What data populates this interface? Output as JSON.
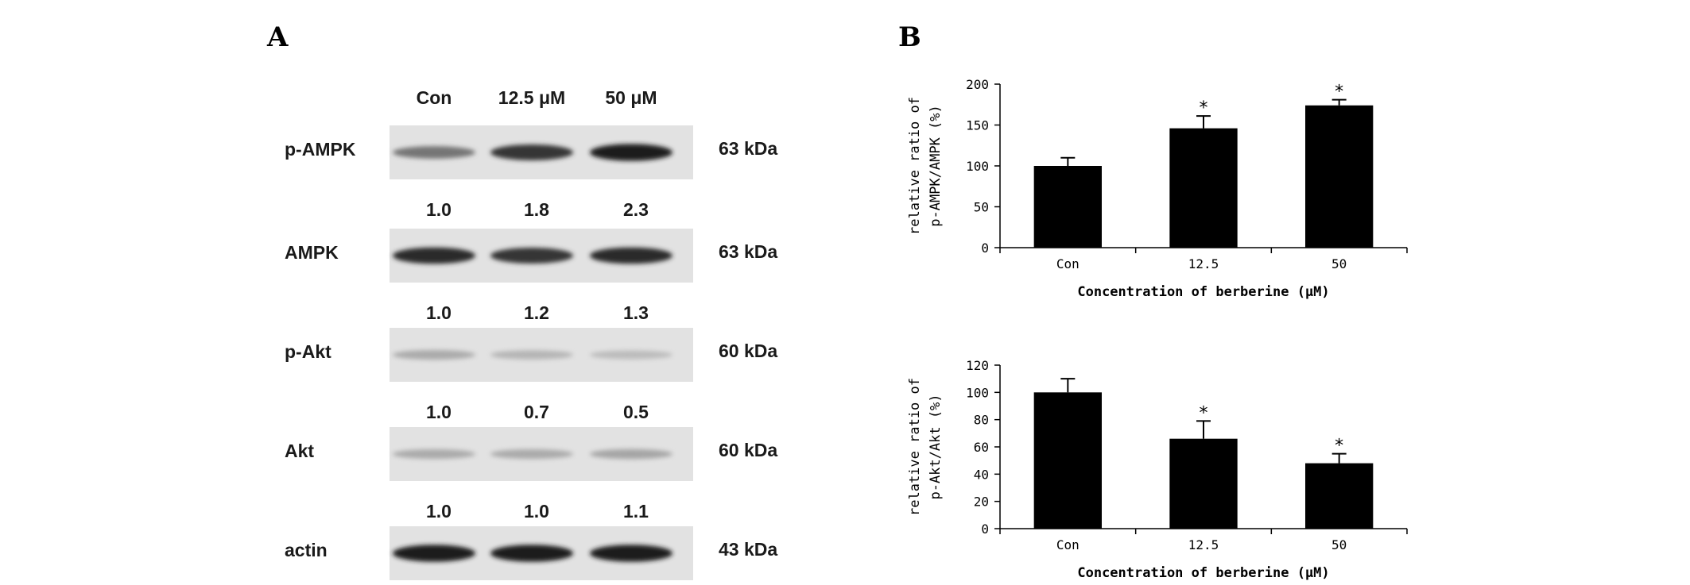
{
  "panel_labels": {
    "a": "A",
    "b": "B"
  },
  "blot": {
    "lanes": [
      "Con",
      "12.5 μM",
      "50 μM"
    ],
    "rows": [
      {
        "protein": "p-AMPK",
        "kda": "63 kDa",
        "ratios": [
          "1.0",
          "1.8",
          "2.3"
        ],
        "band_strength": [
          0.55,
          0.85,
          0.95
        ]
      },
      {
        "protein": "AMPK",
        "kda": "63 kDa",
        "ratios": [
          "1.0",
          "1.2",
          "1.3"
        ],
        "band_strength": [
          0.9,
          0.85,
          0.9
        ]
      },
      {
        "protein": "p-Akt",
        "kda": "60 kDa",
        "ratios": [
          "1.0",
          "0.7",
          "0.5"
        ],
        "band_strength": [
          0.3,
          0.25,
          0.22
        ]
      },
      {
        "protein": "Akt",
        "kda": "60 kDa",
        "ratios": [
          "1.0",
          "1.0",
          "1.1"
        ],
        "band_strength": [
          0.3,
          0.3,
          0.32
        ]
      },
      {
        "protein": "actin",
        "kda": "43 kDa",
        "ratios": [],
        "band_strength": [
          0.95,
          0.95,
          0.95
        ]
      }
    ]
  },
  "chart_data": [
    {
      "type": "bar",
      "categories": [
        "Con",
        "12.5",
        "50"
      ],
      "values": [
        100,
        146,
        174
      ],
      "errors": [
        10,
        15,
        7
      ],
      "significance": [
        "",
        "*",
        "*"
      ],
      "ylabel": [
        "relative ratio of",
        "p-AMPK/AMPK (%)"
      ],
      "xlabel": "Concentration of berberine (μM)",
      "ylim": [
        0,
        200
      ],
      "yticks": [
        0,
        50,
        100,
        150,
        200
      ],
      "bar_color": "#000000"
    },
    {
      "type": "bar",
      "categories": [
        "Con",
        "12.5",
        "50"
      ],
      "values": [
        100,
        66,
        48
      ],
      "errors": [
        10,
        13,
        7
      ],
      "significance": [
        "",
        "*",
        "*"
      ],
      "ylabel": [
        "relative ratio of",
        "p-Akt/Akt (%)"
      ],
      "xlabel": "Concentration of berberine (μM)",
      "ylim": [
        0,
        120
      ],
      "yticks": [
        0,
        20,
        40,
        60,
        80,
        100,
        120
      ],
      "bar_color": "#000000"
    }
  ]
}
